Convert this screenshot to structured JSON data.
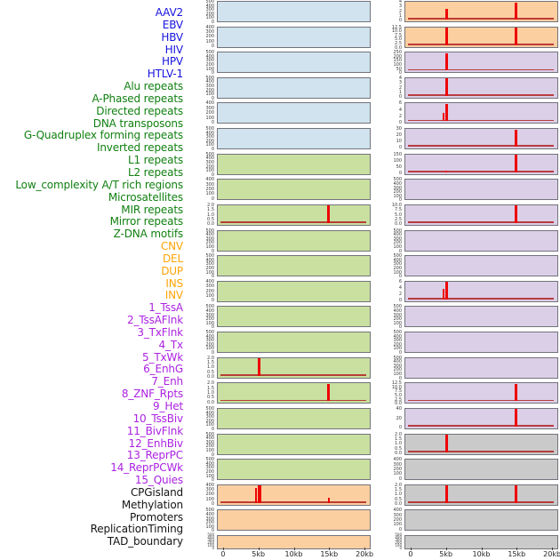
{
  "figure": {
    "colors": {
      "label": {
        "virus": "#1713dd",
        "repeat": "#118011",
        "sv": "#ffa407",
        "chromatin": "#ab22e2",
        "other": "#141414"
      },
      "panel_bg": {
        "virus": "#d0e3ee",
        "repeat": "#c9e0a0",
        "sv": "#fccfa1",
        "chromatin": "#dbcfe7",
        "other": "#cacaca"
      },
      "spike": "#ee0404",
      "baseline": "#b22222",
      "panel_border": "#73737c"
    }
  },
  "track_labels": [
    {
      "text": "AAV2",
      "group": "virus"
    },
    {
      "text": "EBV",
      "group": "virus"
    },
    {
      "text": "HBV",
      "group": "virus"
    },
    {
      "text": "HIV",
      "group": "virus"
    },
    {
      "text": "HPV",
      "group": "virus"
    },
    {
      "text": "HTLV-1",
      "group": "virus"
    },
    {
      "text": "Alu repeats",
      "group": "repeat"
    },
    {
      "text": "A-Phased repeats",
      "group": "repeat"
    },
    {
      "text": "Directed repeats",
      "group": "repeat"
    },
    {
      "text": "DNA transposons",
      "group": "repeat"
    },
    {
      "text": "G-Quadruplex forming repeats",
      "group": "repeat"
    },
    {
      "text": "Inverted repeats",
      "group": "repeat"
    },
    {
      "text": "L1 repeats",
      "group": "repeat"
    },
    {
      "text": "L2 repeats",
      "group": "repeat"
    },
    {
      "text": "Low_complexity A/T rich regions",
      "group": "repeat"
    },
    {
      "text": "Microsatellites",
      "group": "repeat"
    },
    {
      "text": "MIR repeats",
      "group": "repeat"
    },
    {
      "text": "Mirror repeats",
      "group": "repeat"
    },
    {
      "text": "Z-DNA motifs",
      "group": "repeat"
    },
    {
      "text": "CNV",
      "group": "sv"
    },
    {
      "text": "DEL",
      "group": "sv"
    },
    {
      "text": "DUP",
      "group": "sv"
    },
    {
      "text": "INS",
      "group": "sv"
    },
    {
      "text": "INV",
      "group": "sv"
    },
    {
      "text": "1_TssA",
      "group": "chromatin"
    },
    {
      "text": "2_TssAFlnk",
      "group": "chromatin"
    },
    {
      "text": "3_TxFlnk",
      "group": "chromatin"
    },
    {
      "text": "4_Tx",
      "group": "chromatin"
    },
    {
      "text": "5_TxWk",
      "group": "chromatin"
    },
    {
      "text": "6_EnhG",
      "group": "chromatin"
    },
    {
      "text": "7_Enh",
      "group": "chromatin"
    },
    {
      "text": "8_ZNF_Rpts",
      "group": "chromatin"
    },
    {
      "text": "9_Het",
      "group": "chromatin"
    },
    {
      "text": "10_TssBiv",
      "group": "chromatin"
    },
    {
      "text": "11_BivFlnk",
      "group": "chromatin"
    },
    {
      "text": "12_EnhBiv",
      "group": "chromatin"
    },
    {
      "text": "13_ReprPC",
      "group": "chromatin"
    },
    {
      "text": "14_ReprPCWk",
      "group": "chromatin"
    },
    {
      "text": "15_Quies",
      "group": "chromatin"
    },
    {
      "text": "CPGisland",
      "group": "other"
    },
    {
      "text": "Methylation",
      "group": "other"
    },
    {
      "text": "Promoters",
      "group": "other"
    },
    {
      "text": "ReplicationTiming",
      "group": "other"
    },
    {
      "text": "TAD_boundary",
      "group": "other"
    }
  ],
  "chart_data": {
    "type": "line",
    "description": "Density profiles over a 0-20kb window; red spikes mark peaks at 5kb and 15kb; rel_h is peak height relative to panel top",
    "x_axis": {
      "ticks": [
        "0",
        "5kb",
        "10kb",
        "15kb",
        "20kb"
      ],
      "tick_kb": [
        0,
        5,
        10,
        15,
        20
      ],
      "range_kb": [
        0,
        20
      ]
    },
    "columns": [
      {
        "panels": [
          {
            "label": "AAV2",
            "group": "virus",
            "yticks": [
              "500",
              "400",
              "300",
              "200",
              "100",
              "0"
            ],
            "peaks": []
          },
          {
            "label": "EBV",
            "group": "virus",
            "yticks": [
              "400",
              "300",
              "200",
              "100",
              "0"
            ],
            "peaks": []
          },
          {
            "label": "HBV",
            "group": "virus",
            "yticks": [
              "500",
              "400",
              "300",
              "200",
              "100",
              "0"
            ],
            "peaks": []
          },
          {
            "label": "HIV",
            "group": "virus",
            "yticks": [
              "500",
              "400",
              "300",
              "200",
              "100",
              "0"
            ],
            "peaks": []
          },
          {
            "label": "HPV",
            "group": "virus",
            "yticks": [
              "400",
              "300",
              "200",
              "100",
              "0"
            ],
            "peaks": []
          },
          {
            "label": "HTLV-1",
            "group": "virus",
            "yticks": [
              "500",
              "400",
              "300",
              "200",
              "100",
              "0"
            ],
            "peaks": []
          },
          {
            "label": "Alu repeats",
            "group": "repeat",
            "yticks": [
              "500",
              "400",
              "300",
              "200",
              "100",
              "0"
            ],
            "peaks": []
          },
          {
            "label": "A-Phased repeats",
            "group": "repeat",
            "yticks": [
              "400",
              "300",
              "200",
              "100",
              "0"
            ],
            "peaks": []
          },
          {
            "label": "Directed repeats",
            "group": "repeat",
            "yticks": [
              "2.0",
              "1.5",
              "1.0",
              "0.5",
              "0.0"
            ],
            "peaks": [
              {
                "x_kb": 15,
                "rel_h": 1.0,
                "w": 3
              }
            ]
          },
          {
            "label": "DNA transposons",
            "group": "repeat",
            "yticks": [
              "500",
              "400",
              "300",
              "200",
              "100",
              "0"
            ],
            "peaks": []
          },
          {
            "label": "G-Quadruplex forming repeats",
            "group": "repeat",
            "yticks": [
              "500",
              "400",
              "300",
              "200",
              "100",
              "0"
            ],
            "peaks": []
          },
          {
            "label": "Inverted repeats",
            "group": "repeat",
            "yticks": [
              "400",
              "300",
              "200",
              "100",
              "0"
            ],
            "peaks": []
          },
          {
            "label": "L1 repeats",
            "group": "repeat",
            "yticks": [
              "500",
              "400",
              "300",
              "200",
              "100",
              "0"
            ],
            "peaks": []
          },
          {
            "label": "L2 repeats",
            "group": "repeat",
            "yticks": [
              "500",
              "400",
              "300",
              "200",
              "100",
              "0"
            ],
            "peaks": []
          },
          {
            "label": "Low_complexity A/T rich regions",
            "group": "repeat",
            "yticks": [
              "2.0",
              "1.5",
              "1.0",
              "0.5",
              "0.0"
            ],
            "peaks": [
              {
                "x_kb": 5,
                "rel_h": 1.0,
                "w": 3
              }
            ]
          },
          {
            "label": "Microsatellites",
            "group": "repeat",
            "yticks": [
              "2.0",
              "1.5",
              "1.0",
              "0.5",
              "0.0"
            ],
            "peaks": [
              {
                "x_kb": 15,
                "rel_h": 1.0,
                "w": 3
              }
            ]
          },
          {
            "label": "MIR repeats",
            "group": "repeat",
            "yticks": [
              "500",
              "400",
              "300",
              "200",
              "100",
              "0"
            ],
            "peaks": []
          },
          {
            "label": "Mirror repeats",
            "group": "repeat",
            "yticks": [
              "500",
              "400",
              "300",
              "200",
              "100",
              "0"
            ],
            "peaks": []
          },
          {
            "label": "Z-DNA motifs",
            "group": "repeat",
            "yticks": [
              "500",
              "400",
              "300",
              "200",
              "100",
              "0"
            ],
            "peaks": []
          },
          {
            "label": "CNV",
            "group": "sv",
            "yticks": [
              "400",
              "300",
              "200",
              "100",
              "0"
            ],
            "peaks": [
              {
                "x_kb": 4.6,
                "rel_h": 0.85,
                "w": 2
              },
              {
                "x_kb": 5.05,
                "rel_h": 1.0,
                "w": 4
              },
              {
                "x_kb": 15,
                "rel_h": 0.28,
                "w": 2
              }
            ]
          },
          {
            "label": "DEL",
            "group": "sv",
            "yticks": [
              "500",
              "400",
              "300",
              "200",
              "100",
              "0"
            ],
            "peaks": []
          },
          {
            "label": "DUP",
            "group": "sv",
            "yticks": [
              "500",
              "400",
              "300",
              "200",
              "100",
              "0"
            ],
            "peaks": []
          }
        ]
      },
      {
        "panels": [
          {
            "label": "INS",
            "group": "sv",
            "yticks": [
              "4",
              "3",
              "2",
              "1",
              "0"
            ],
            "peaks": [
              {
                "x_kb": 5,
                "rel_h": 0.6,
                "w": 3
              },
              {
                "x_kb": 15,
                "rel_h": 1.0,
                "w": 3
              }
            ]
          },
          {
            "label": "INV",
            "group": "sv",
            "yticks": [
              "12.5",
              "10.0",
              "7.5",
              "5.0",
              "2.5",
              "0.0"
            ],
            "peaks": [
              {
                "x_kb": 5,
                "rel_h": 1.0,
                "w": 3
              },
              {
                "x_kb": 15,
                "rel_h": 1.0,
                "w": 3
              }
            ]
          },
          {
            "label": "1_TssA",
            "group": "chromatin",
            "yticks": [
              "250",
              "200",
              "150",
              "100",
              "50",
              "0"
            ],
            "peaks": [
              {
                "x_kb": 5,
                "rel_h": 1.0,
                "w": 3
              }
            ]
          },
          {
            "label": "2_TssAFlnk",
            "group": "chromatin",
            "yticks": [
              "4",
              "3",
              "2",
              "1",
              "0"
            ],
            "peaks": [
              {
                "x_kb": 5,
                "rel_h": 1.0,
                "w": 3
              }
            ]
          },
          {
            "label": "3_TxFlnk",
            "group": "chromatin",
            "yticks": [
              "6",
              "4",
              "2",
              "0"
            ],
            "peaks": [
              {
                "x_kb": 4.6,
                "rel_h": 0.5,
                "w": 2
              },
              {
                "x_kb": 5,
                "rel_h": 1.0,
                "w": 3
              }
            ]
          },
          {
            "label": "4_Tx",
            "group": "chromatin",
            "yticks": [
              "30",
              "20",
              "10",
              "0"
            ],
            "peaks": [
              {
                "x_kb": 15,
                "rel_h": 1.0,
                "w": 3
              }
            ]
          },
          {
            "label": "5_TxWk",
            "group": "chromatin",
            "yticks": [
              "150",
              "100",
              "50",
              "0"
            ],
            "peaks": [
              {
                "x_kb": 5,
                "rel_h": 0.08,
                "w": 2
              },
              {
                "x_kb": 15,
                "rel_h": 1.0,
                "w": 3
              }
            ]
          },
          {
            "label": "6_EnhG",
            "group": "chromatin",
            "yticks": [
              "500",
              "400",
              "300",
              "200",
              "100",
              "0"
            ],
            "peaks": []
          },
          {
            "label": "7_Enh",
            "group": "chromatin",
            "yticks": [
              "10.0",
              "7.5",
              "5.0",
              "2.5",
              "0.0"
            ],
            "peaks": [
              {
                "x_kb": 15,
                "rel_h": 1.0,
                "w": 3
              }
            ]
          },
          {
            "label": "8_ZNF_Rpts",
            "group": "chromatin",
            "yticks": [
              "500",
              "400",
              "300",
              "200",
              "100",
              "0"
            ],
            "peaks": []
          },
          {
            "label": "9_Het",
            "group": "chromatin",
            "yticks": [
              "500",
              "400",
              "300",
              "200",
              "100",
              "0"
            ],
            "peaks": []
          },
          {
            "label": "10_TssBiv",
            "group": "chromatin",
            "yticks": [
              "6",
              "4",
              "2",
              "0"
            ],
            "peaks": [
              {
                "x_kb": 4.6,
                "rel_h": 0.62,
                "w": 2
              },
              {
                "x_kb": 5,
                "rel_h": 1.0,
                "w": 3
              }
            ]
          },
          {
            "label": "11_BivFlnk",
            "group": "chromatin",
            "yticks": [
              "500",
              "400",
              "300",
              "200",
              "100",
              "0"
            ],
            "peaks": []
          },
          {
            "label": "12_EnhBiv",
            "group": "chromatin",
            "yticks": [
              "500",
              "400",
              "300",
              "200",
              "100",
              "0"
            ],
            "peaks": []
          },
          {
            "label": "13_ReprPC",
            "group": "chromatin",
            "yticks": [
              "500",
              "400",
              "300",
              "200",
              "100",
              "0"
            ],
            "peaks": []
          },
          {
            "label": "14_ReprPCWk",
            "group": "chromatin",
            "yticks": [
              "12.5",
              "10.0",
              "7.5",
              "5.0",
              "2.5",
              "0.0"
            ],
            "peaks": [
              {
                "x_kb": 15,
                "rel_h": 1.0,
                "w": 3
              }
            ]
          },
          {
            "label": "15_Quies",
            "group": "chromatin",
            "yticks": [
              "40",
              "20",
              "0"
            ],
            "peaks": [
              {
                "x_kb": 15,
                "rel_h": 1.0,
                "w": 3
              }
            ]
          },
          {
            "label": "CPGisland",
            "group": "other",
            "yticks": [
              "2.0",
              "1.5",
              "1.0",
              "0.5",
              "0.0"
            ],
            "peaks": [
              {
                "x_kb": 5,
                "rel_h": 1.0,
                "w": 3
              }
            ]
          },
          {
            "label": "Methylation",
            "group": "other",
            "yticks": [
              "400",
              "300",
              "200",
              "100",
              "0"
            ],
            "peaks": []
          },
          {
            "label": "Promoters",
            "group": "other",
            "yticks": [
              "2.0",
              "1.5",
              "1.0",
              "0.5",
              "0.0"
            ],
            "peaks": [
              {
                "x_kb": 5,
                "rel_h": 1.0,
                "w": 3
              },
              {
                "x_kb": 15,
                "rel_h": 1.0,
                "w": 3
              }
            ]
          },
          {
            "label": "ReplicationTiming",
            "group": "other",
            "yticks": [
              "400",
              "300",
              "200",
              "100",
              "0"
            ],
            "peaks": []
          },
          {
            "label": "TAD_boundary",
            "group": "other",
            "yticks": [
              "500",
              "400",
              "300",
              "200",
              "100",
              "0"
            ],
            "peaks": []
          }
        ]
      }
    ]
  }
}
